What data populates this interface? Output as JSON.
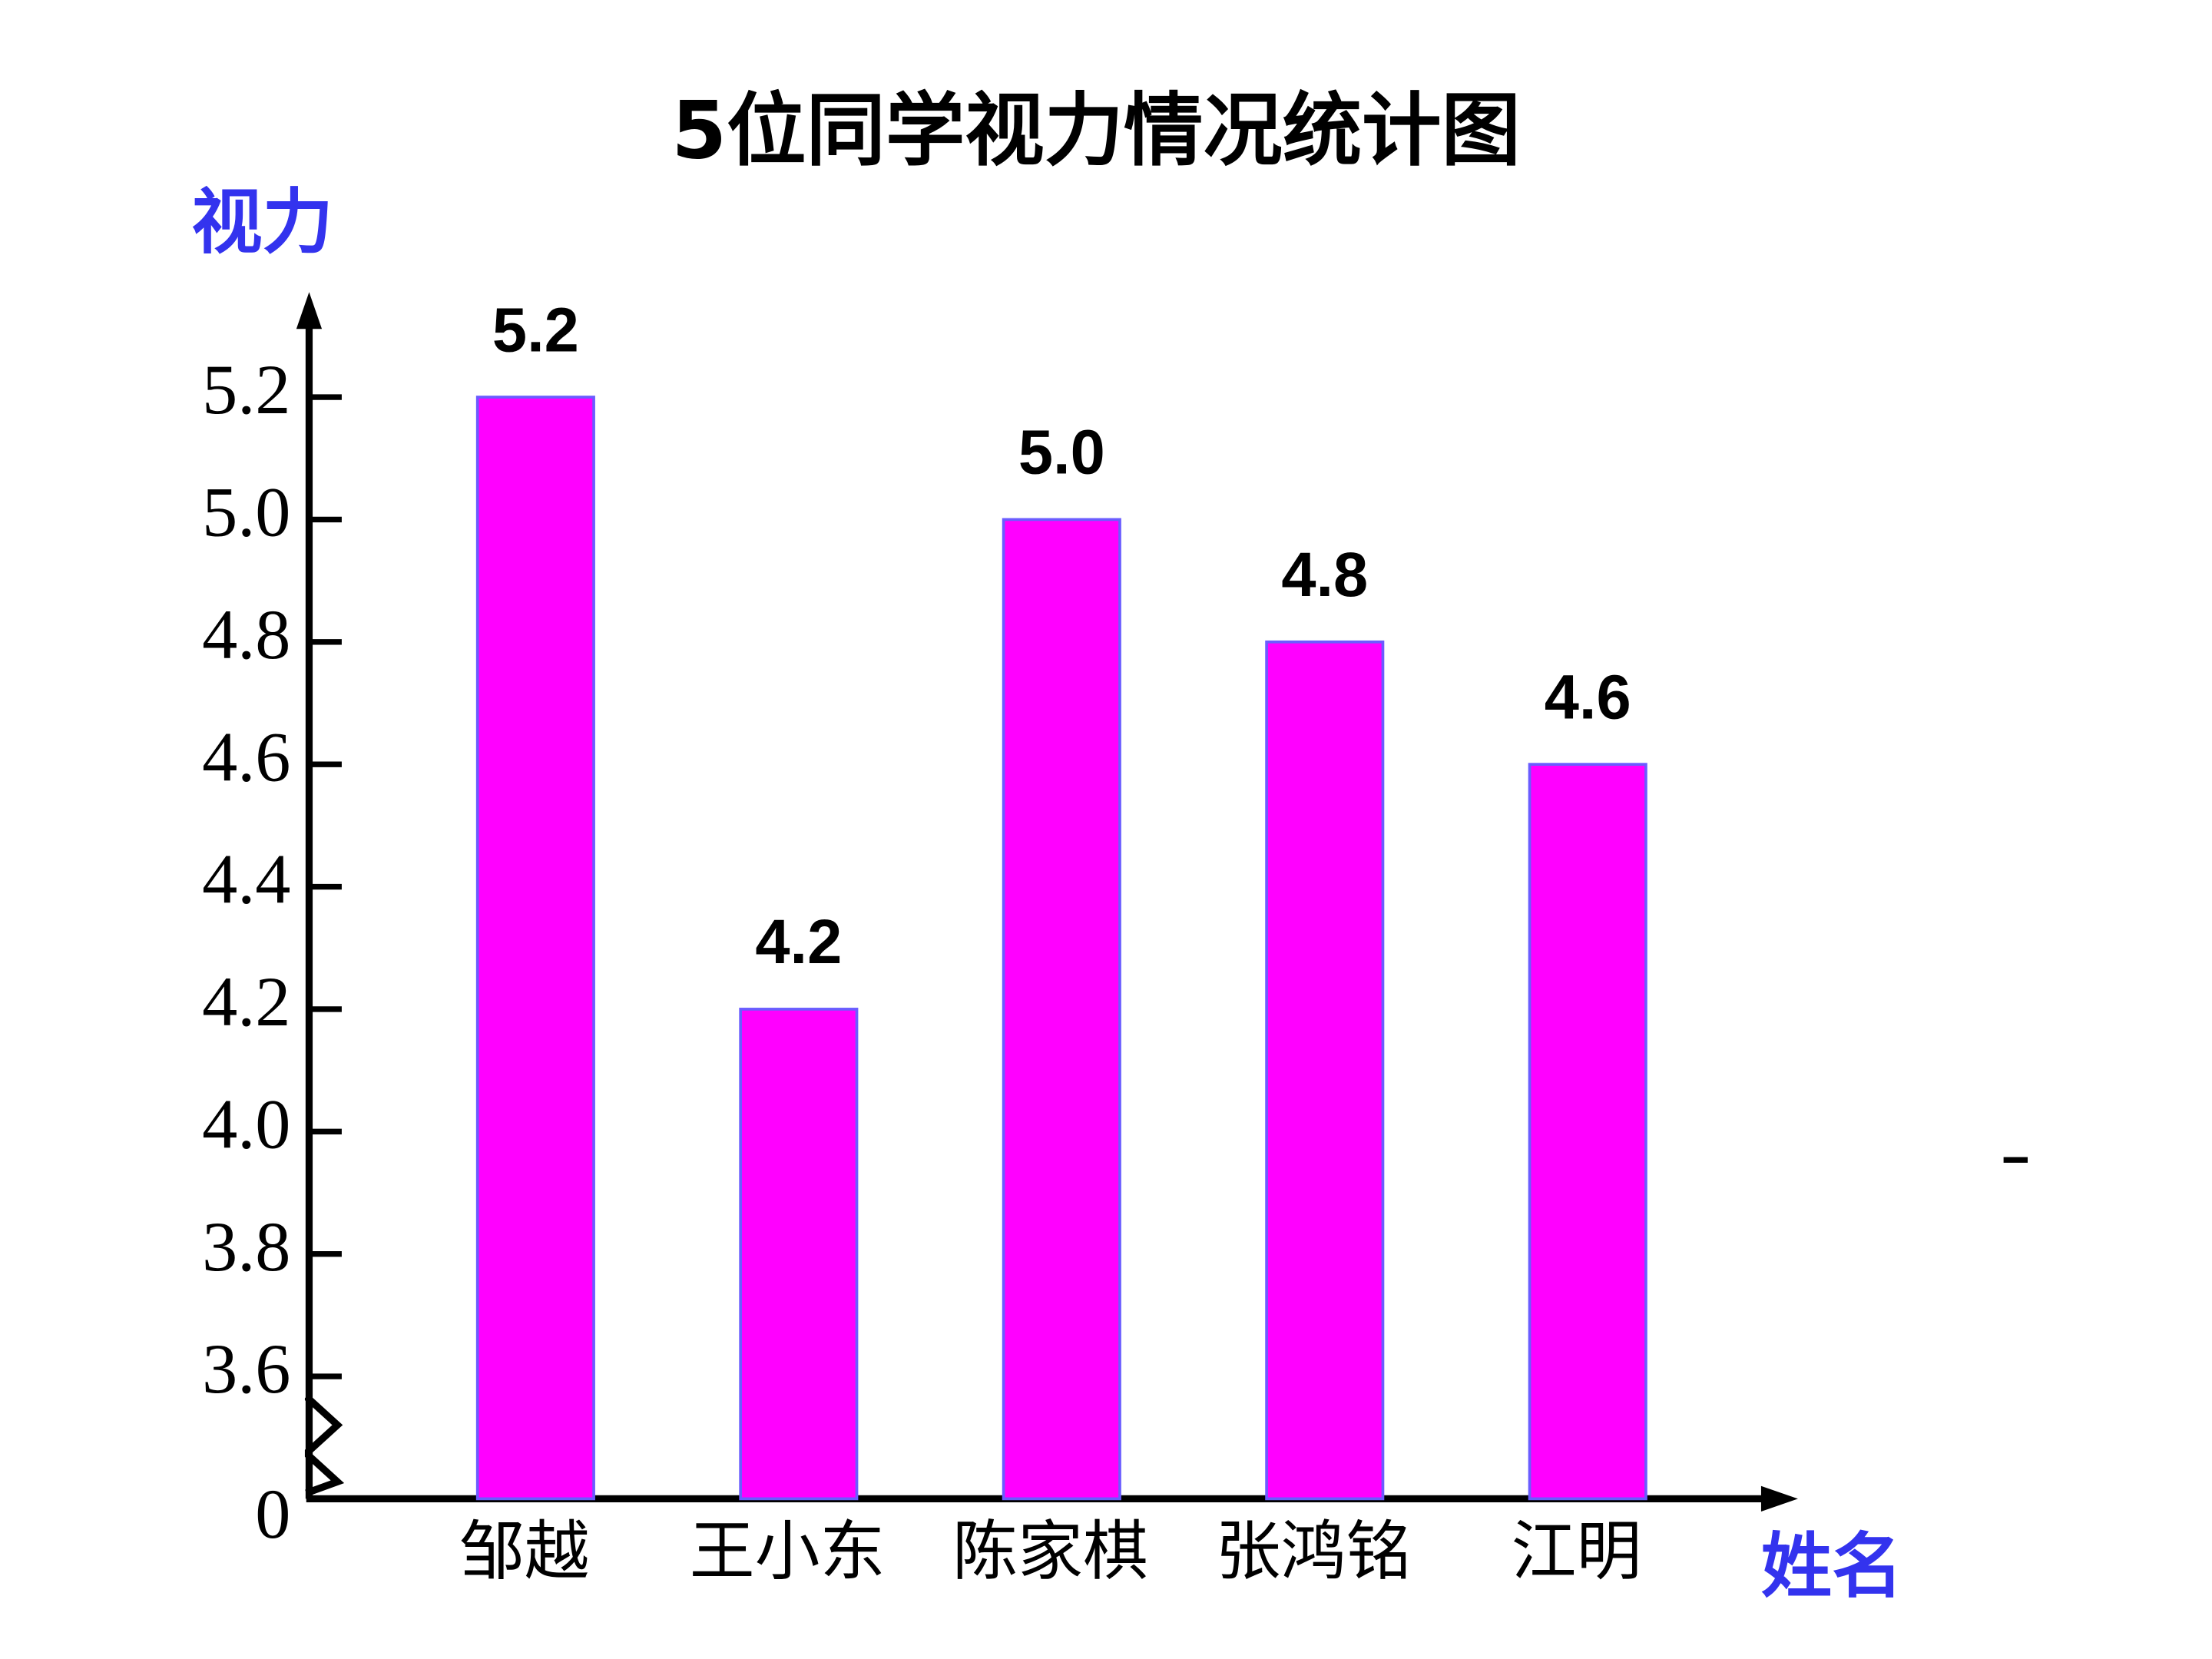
{
  "chart_data": {
    "type": "bar",
    "title": "5位同学视力情况统计图",
    "y_label": "视力",
    "x_label": "姓名",
    "categories": [
      "邹越",
      "王小东",
      "陈家棋",
      "张鸿铭",
      "江明"
    ],
    "values": [
      5.2,
      4.2,
      5.0,
      4.8,
      4.6
    ],
    "value_labels": [
      "5.2",
      "4.2",
      "5.0",
      "4.8",
      "4.6"
    ],
    "color": "#ff00ff",
    "ylim": [
      0,
      5.36
    ],
    "axis_break": [
      0,
      3.4
    ],
    "yticks": [
      {
        "value": 0,
        "label": "0"
      },
      3.6,
      3.8,
      {
        "value": 4.0,
        "label": "4.0"
      },
      4.2,
      4.4,
      4.6,
      4.8,
      {
        "value": 5.0,
        "label": "5.0"
      },
      5.2
    ],
    "grid": false
  }
}
